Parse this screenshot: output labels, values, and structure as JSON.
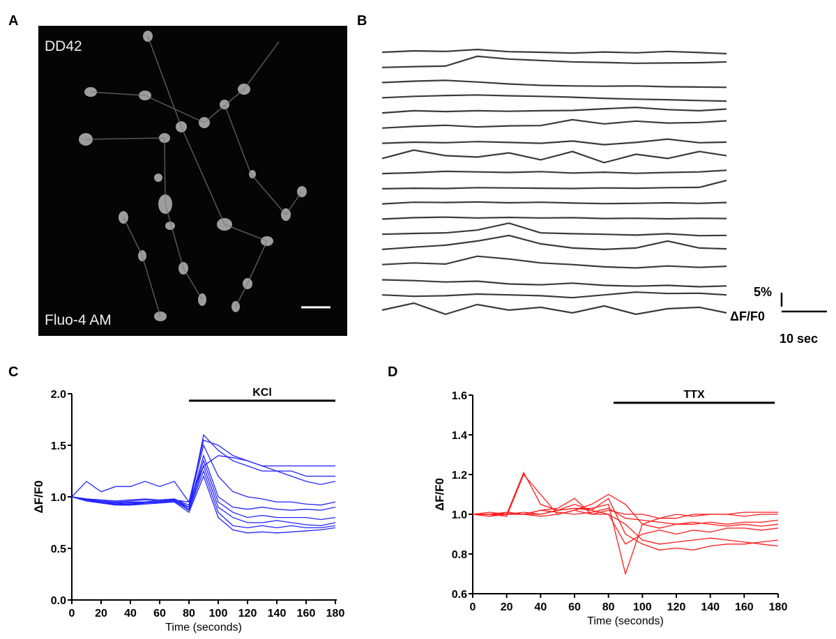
{
  "panel_labels": [
    "A",
    "B",
    "C",
    "D"
  ],
  "image": {
    "top_label": "DD42",
    "bottom_label": "Fluo-4 AM"
  },
  "chart_data": [
    {
      "type": "traces",
      "color": "#3a3a3a",
      "x": [
        0,
        7,
        14,
        21,
        28,
        35,
        42,
        49,
        56,
        63,
        70,
        76
      ],
      "scale_y": {
        "value": 5,
        "label": "5%"
      },
      "scale_y_unit": "ΔF/F0",
      "scale_x": {
        "value": 10,
        "label": "10 sec"
      },
      "series": [
        {
          "values": [
            0,
            0.5,
            0.3,
            1,
            0.2,
            0,
            -0.3,
            0.1,
            -0.2,
            0.3,
            -0.1,
            -0.5
          ]
        },
        {
          "values": [
            0,
            0.3,
            0.5,
            4,
            3,
            2.5,
            2,
            1.8,
            1.5,
            1.6,
            1.7,
            2
          ]
        },
        {
          "values": [
            0,
            0.5,
            0.8,
            0.2,
            -0.5,
            -1,
            -1.2,
            -1.3,
            -1.2,
            -1.5,
            -1.6,
            -1.7
          ]
        },
        {
          "values": [
            0,
            0.5,
            0.8,
            1,
            0.7,
            0.5,
            0.2,
            -0.2,
            -0.5,
            -0.7,
            -1,
            -1.2
          ]
        },
        {
          "values": [
            0,
            0.8,
            0.5,
            0.8,
            0.6,
            0.8,
            0.9,
            1.5,
            2,
            1.2,
            0.8,
            1.4
          ]
        },
        {
          "values": [
            0,
            0.6,
            1,
            0.4,
            0.8,
            0.9,
            3,
            1.5,
            2.5,
            1.8,
            2,
            2.6
          ]
        },
        {
          "values": [
            0,
            0.4,
            0.2,
            0.6,
            0.3,
            0,
            0.8,
            -0.5,
            0.3,
            1.5,
            0.2,
            0.4
          ]
        },
        {
          "values": [
            0,
            3,
            1,
            0.5,
            2,
            -0.5,
            2.5,
            -1.5,
            1.5,
            0,
            2.5,
            1
          ]
        },
        {
          "values": [
            0,
            0.3,
            0.8,
            0.6,
            0.4,
            0.7,
            0.2,
            0.5,
            0.1,
            0.4,
            0.6,
            1.2
          ]
        },
        {
          "values": [
            0,
            0.2,
            0.1,
            0.4,
            0.3,
            0.2,
            0.1,
            0.3,
            0.2,
            0.4,
            0.5,
            3
          ]
        },
        {
          "values": [
            0,
            0.6,
            0.5,
            0.7,
            0.4,
            0.6,
            0.3,
            0.1,
            0.2,
            0.4,
            0.2,
            0.5
          ]
        },
        {
          "values": [
            0,
            0.5,
            0.7,
            0.4,
            0.6,
            0.4,
            0.5,
            0.2,
            0.3,
            0.1,
            0.3,
            0.2
          ]
        },
        {
          "values": [
            0,
            0.3,
            0.5,
            1.5,
            4,
            0.5,
            0.2,
            0,
            -0.3,
            0.2,
            -0.5,
            -0.4
          ]
        },
        {
          "values": [
            0,
            0.8,
            1.5,
            3,
            5,
            2,
            0.5,
            0,
            0.5,
            3,
            0.5,
            0.2
          ]
        },
        {
          "values": [
            0,
            0.6,
            0.2,
            3,
            2,
            0.6,
            0,
            -0.8,
            -1.2,
            -0.5,
            -1,
            -0.6
          ]
        },
        {
          "values": [
            0,
            -0.3,
            -0.8,
            -0.5,
            -1.5,
            -1.8,
            -1.2,
            -2,
            -2.3,
            -2,
            -2.5,
            -2.2
          ]
        },
        {
          "values": [
            0,
            -0.5,
            -0.3,
            0.3,
            0,
            -0.3,
            -1,
            0,
            1,
            0.5,
            0.6,
            0
          ]
        },
        {
          "values": [
            0,
            2.5,
            -1.5,
            2,
            0,
            1,
            -1,
            1.5,
            -1.5,
            0.5,
            1,
            -1
          ]
        }
      ]
    },
    {
      "type": "line",
      "color": "#2323ff",
      "ylabel": "ΔF/F0",
      "xlabel": "Time (seconds)",
      "annotation": "KCl",
      "annotation_span": [
        80,
        180
      ],
      "xlim": [
        0,
        180
      ],
      "xticks": [
        0,
        20,
        40,
        60,
        80,
        100,
        120,
        140,
        160,
        180
      ],
      "ylim": [
        0,
        2
      ],
      "yticks": [
        {
          "value": 0,
          "label": "0.0"
        },
        0.5,
        {
          "value": 1,
          "label": "1.0"
        },
        1.5,
        {
          "value": 2,
          "label": "2.0"
        }
      ],
      "x": [
        0,
        10,
        20,
        30,
        40,
        50,
        60,
        70,
        80,
        90,
        100,
        110,
        120,
        130,
        140,
        150,
        160,
        170,
        180
      ],
      "series": [
        {
          "values": [
            1.0,
            1.15,
            1.05,
            1.1,
            1.1,
            1.15,
            1.1,
            1.15,
            0.95,
            1.55,
            1.5,
            1.4,
            1.35,
            1.3,
            1.3,
            1.3,
            1.3,
            1.3,
            1.3
          ]
        },
        {
          "values": [
            1.0,
            0.98,
            0.97,
            0.96,
            0.97,
            0.98,
            0.97,
            0.98,
            0.9,
            1.6,
            1.45,
            1.35,
            1.3,
            1.25,
            1.25,
            1.25,
            1.2,
            1.2,
            1.2
          ]
        },
        {
          "values": [
            1.0,
            0.97,
            0.95,
            0.94,
            0.95,
            0.95,
            0.96,
            0.97,
            0.95,
            1.3,
            1.4,
            1.38,
            1.35,
            1.3,
            1.25,
            1.2,
            1.15,
            1.12,
            1.15
          ]
        },
        {
          "values": [
            1.0,
            0.98,
            0.96,
            0.95,
            0.96,
            0.97,
            0.96,
            0.98,
            0.92,
            1.5,
            1.2,
            1.05,
            1.0,
            0.98,
            0.95,
            0.95,
            0.93,
            0.92,
            0.95
          ]
        },
        {
          "values": [
            1.0,
            0.97,
            0.95,
            0.94,
            0.93,
            0.95,
            0.94,
            0.96,
            0.9,
            1.4,
            1.0,
            0.9,
            0.88,
            0.9,
            0.88,
            0.87,
            0.88,
            0.87,
            0.9
          ]
        },
        {
          "values": [
            1.0,
            0.96,
            0.94,
            0.93,
            0.93,
            0.94,
            0.95,
            0.96,
            0.9,
            1.35,
            0.95,
            0.85,
            0.8,
            0.82,
            0.8,
            0.8,
            0.8,
            0.78,
            0.8
          ]
        },
        {
          "values": [
            1.0,
            0.98,
            0.96,
            0.95,
            0.94,
            0.95,
            0.96,
            0.97,
            0.88,
            1.3,
            0.9,
            0.8,
            0.75,
            0.75,
            0.77,
            0.75,
            0.73,
            0.72,
            0.75
          ]
        },
        {
          "values": [
            1.0,
            0.97,
            0.95,
            0.93,
            0.92,
            0.94,
            0.95,
            0.96,
            0.87,
            1.25,
            0.85,
            0.72,
            0.7,
            0.72,
            0.7,
            0.72,
            0.7,
            0.7,
            0.72
          ]
        },
        {
          "values": [
            1.0,
            0.96,
            0.94,
            0.92,
            0.92,
            0.93,
            0.94,
            0.95,
            0.85,
            1.2,
            0.8,
            0.68,
            0.65,
            0.66,
            0.65,
            0.66,
            0.67,
            0.68,
            0.7
          ]
        }
      ]
    },
    {
      "type": "line",
      "color": "#ff1a1a",
      "ylabel": "ΔF/F0",
      "xlabel": "Time (seconds)",
      "annotation": "TTX",
      "annotation_span": [
        83,
        178
      ],
      "xlim": [
        0,
        180
      ],
      "xticks": [
        0,
        20,
        40,
        60,
        80,
        100,
        120,
        140,
        160,
        180
      ],
      "ylim": [
        0.6,
        1.6
      ],
      "yticks": [
        0.6,
        0.8,
        {
          "value": 1,
          "label": "1.0"
        },
        1.2,
        1.4,
        1.6
      ],
      "x": [
        0,
        10,
        20,
        30,
        40,
        50,
        60,
        70,
        80,
        90,
        100,
        110,
        120,
        130,
        140,
        150,
        160,
        170,
        180
      ],
      "series": [
        {
          "values": [
            1.0,
            1.0,
            1.0,
            1.21,
            1.05,
            1.02,
            1.03,
            1.03,
            1.05,
            0.7,
            0.95,
            0.98,
            0.98,
            1.0,
            1.0,
            1.0,
            1.01,
            1.01,
            1.01
          ]
        },
        {
          "values": [
            1.0,
            1.0,
            0.99,
            1.2,
            1.1,
            1.0,
            1.02,
            1.05,
            1.1,
            1.05,
            0.95,
            0.93,
            0.95,
            0.95,
            0.96,
            0.95,
            0.96,
            0.96,
            0.97
          ]
        },
        {
          "values": [
            1.0,
            0.99,
            1.01,
            1.0,
            1.02,
            1.03,
            1.08,
            1.0,
            1.0,
            0.85,
            0.9,
            0.92,
            0.9,
            0.92,
            0.91,
            0.93,
            0.93,
            0.92,
            0.93
          ]
        },
        {
          "values": [
            1.0,
            1.0,
            1.0,
            1.0,
            1.0,
            1.02,
            1.05,
            1.02,
            1.08,
            0.9,
            0.85,
            0.82,
            0.83,
            0.82,
            0.84,
            0.85,
            0.85,
            0.86,
            0.87
          ]
        },
        {
          "values": [
            1.0,
            0.99,
            1.0,
            1.01,
            1.0,
            1.02,
            1.03,
            1.02,
            1.0,
            0.95,
            0.87,
            0.85,
            0.86,
            0.87,
            0.88,
            0.87,
            0.86,
            0.85,
            0.84
          ]
        },
        {
          "values": [
            1.0,
            1.0,
            1.01,
            1.0,
            0.99,
            1.0,
            1.02,
            1.0,
            1.02,
            1.0,
            1.0,
            0.98,
            1.0,
            0.99,
            1.0,
            1.0,
            0.99,
            1.0,
            1.0
          ]
        },
        {
          "values": [
            1.0,
            1.01,
            1.0,
            1.0,
            1.02,
            1.01,
            1.0,
            1.01,
            1.03,
            0.98,
            0.97,
            0.96,
            0.95,
            0.96,
            0.95,
            0.94,
            0.95,
            0.94,
            0.95
          ]
        }
      ]
    }
  ]
}
